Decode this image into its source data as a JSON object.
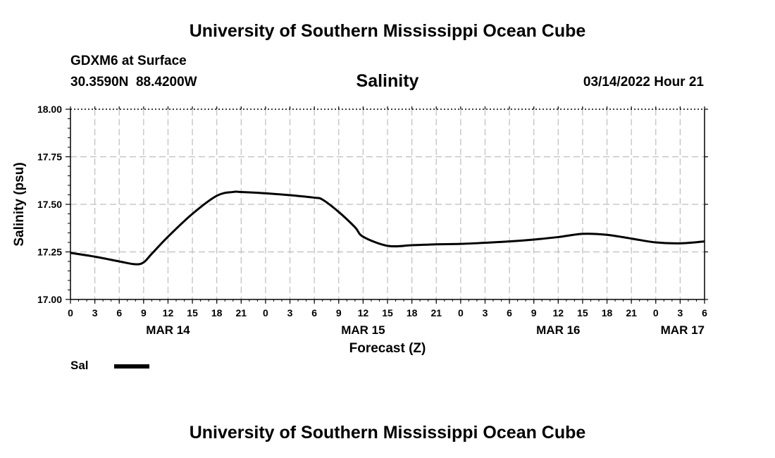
{
  "header": {
    "title": "University of Southern Mississippi Ocean Cube",
    "station": "GDXM6 at Surface",
    "coords": "30.3590N  88.4200W",
    "datetime": "03/14/2022 Hour 21"
  },
  "footer": {
    "title": "University of Southern Mississippi Ocean Cube"
  },
  "legend": {
    "label": "Sal",
    "color": "#000000"
  },
  "chart_data": {
    "type": "line",
    "title": "Salinity",
    "xlabel": "Forecast (Z)",
    "ylabel": "Salinity (psu)",
    "ylim": [
      17.0,
      18.0
    ],
    "y_ticks": [
      "17.00",
      "17.25",
      "17.50",
      "17.75",
      "18.00"
    ],
    "xlim": [
      0,
      78
    ],
    "x_tick_labels": [
      "0",
      "3",
      "6",
      "9",
      "12",
      "15",
      "18",
      "21",
      "0",
      "3",
      "6",
      "9",
      "12",
      "15",
      "18",
      "21",
      "0",
      "3",
      "6",
      "9",
      "12",
      "15",
      "18",
      "21",
      "0",
      "3",
      "6"
    ],
    "date_labels": [
      {
        "label": "MAR 14",
        "hour": 12
      },
      {
        "label": "MAR 15",
        "hour": 36
      },
      {
        "label": "MAR 16",
        "hour": 60
      },
      {
        "label": "MAR 17",
        "hour": 78
      }
    ],
    "grid": true,
    "series": [
      {
        "name": "Sal",
        "color": "#000000",
        "x": [
          0,
          3,
          6,
          8,
          9,
          10,
          12,
          15,
          18,
          20,
          21,
          24,
          27,
          30,
          31,
          33,
          35,
          36,
          39,
          42,
          45,
          48,
          51,
          54,
          57,
          60,
          63,
          66,
          69,
          72,
          75,
          78
        ],
        "y": [
          17.245,
          17.225,
          17.2,
          17.185,
          17.195,
          17.24,
          17.33,
          17.45,
          17.545,
          17.565,
          17.565,
          17.558,
          17.548,
          17.535,
          17.525,
          17.46,
          17.38,
          17.33,
          17.282,
          17.285,
          17.29,
          17.292,
          17.298,
          17.305,
          17.315,
          17.328,
          17.345,
          17.34,
          17.32,
          17.3,
          17.295,
          17.305
        ]
      }
    ]
  }
}
